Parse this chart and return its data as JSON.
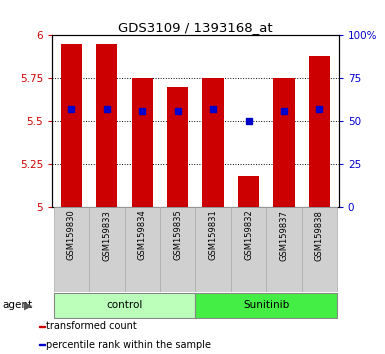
{
  "title": "GDS3109 / 1393168_at",
  "samples": [
    "GSM159830",
    "GSM159833",
    "GSM159834",
    "GSM159835",
    "GSM159831",
    "GSM159832",
    "GSM159837",
    "GSM159838"
  ],
  "red_values": [
    5.95,
    5.95,
    5.75,
    5.7,
    5.75,
    5.18,
    5.75,
    5.88
  ],
  "blue_values": [
    57,
    57,
    56,
    56,
    57,
    50,
    56,
    57
  ],
  "ylim_left": [
    5.0,
    6.0
  ],
  "ylim_right": [
    0,
    100
  ],
  "yticks_left": [
    5.0,
    5.25,
    5.5,
    5.75,
    6.0
  ],
  "yticks_right": [
    0,
    25,
    50,
    75,
    100
  ],
  "ytick_labels_left": [
    "5",
    "5.25",
    "5.5",
    "5.75",
    "6"
  ],
  "ytick_labels_right": [
    "0",
    "25",
    "50",
    "75",
    "100%"
  ],
  "groups": [
    {
      "label": "control",
      "indices": [
        0,
        1,
        2,
        3
      ],
      "color": "#bbffbb"
    },
    {
      "label": "Sunitinib",
      "indices": [
        4,
        5,
        6,
        7
      ],
      "color": "#44ee44"
    }
  ],
  "bar_color": "#cc0000",
  "blue_color": "#0000cc",
  "bar_width": 0.6,
  "legend": [
    {
      "color": "#cc0000",
      "label": "transformed count"
    },
    {
      "color": "#0000cc",
      "label": "percentile rank within the sample"
    }
  ]
}
